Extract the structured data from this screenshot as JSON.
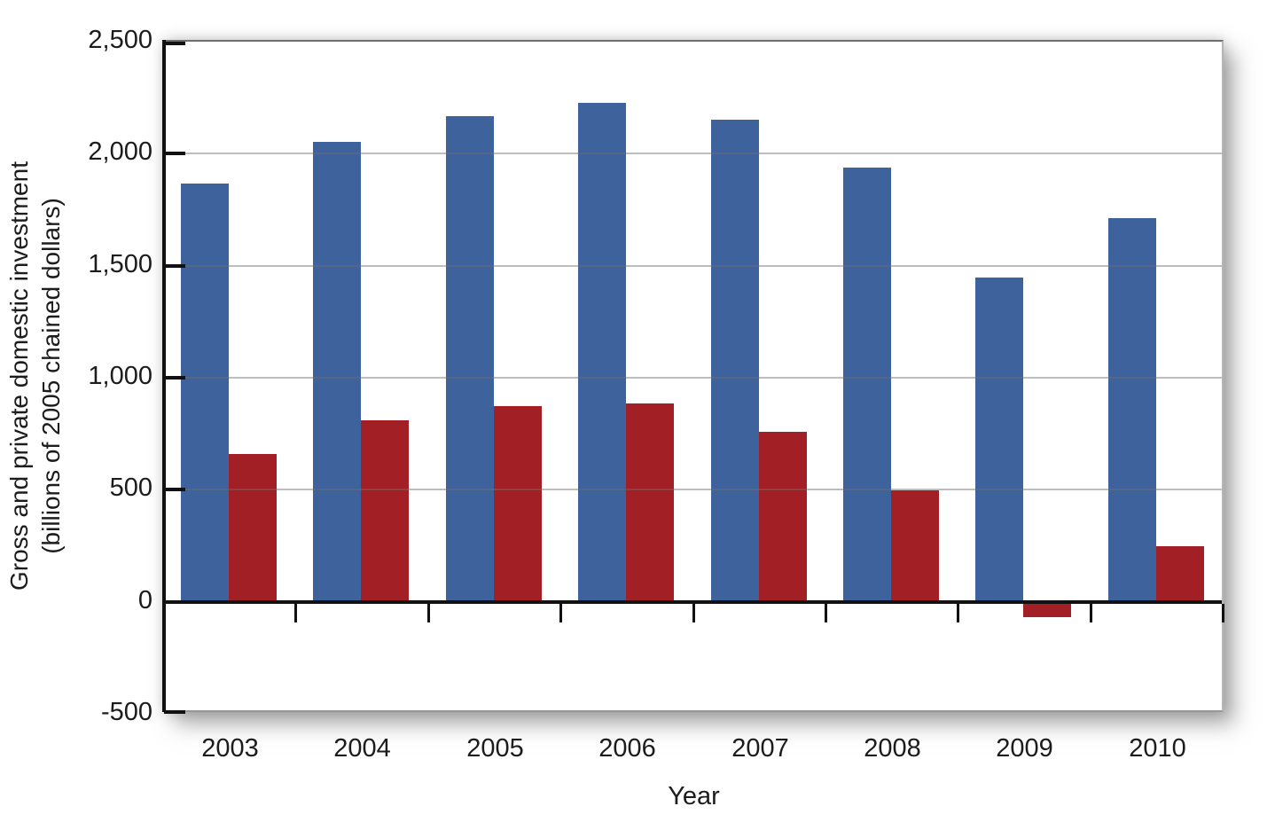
{
  "chart_data": {
    "type": "bar",
    "title": "",
    "xlabel": "Year",
    "ylabel_line1": "Gross and private domestic investment",
    "ylabel_line2": "(billions of 2005 chained dollars)",
    "categories": [
      "2003",
      "2004",
      "2005",
      "2006",
      "2007",
      "2008",
      "2009",
      "2010"
    ],
    "series": [
      {
        "name": "series-blue",
        "color": "#3E629C",
        "values": [
          1870,
          2055,
          2170,
          2230,
          2155,
          1940,
          1450,
          1715
        ]
      },
      {
        "name": "series-red",
        "color": "#A22025",
        "values": [
          660,
          810,
          875,
          885,
          760,
          500,
          -60,
          250
        ]
      }
    ],
    "ylim": [
      -500,
      2500
    ],
    "yticks": [
      {
        "value": 2500,
        "label": "2,500"
      },
      {
        "value": 2000,
        "label": "2,000"
      },
      {
        "value": 1500,
        "label": "1,500"
      },
      {
        "value": 1000,
        "label": "1,000"
      },
      {
        "value": 500,
        "label": "500"
      },
      {
        "value": 0,
        "label": "0"
      },
      {
        "value": -500,
        "label": "-500"
      }
    ],
    "grid": "horizontal",
    "legend": "none"
  }
}
